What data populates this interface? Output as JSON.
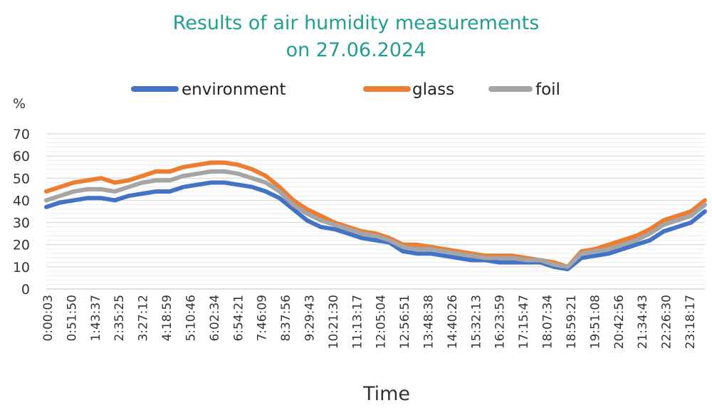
{
  "chart_data": {
    "type": "line",
    "title": [
      "Results of air humidity measurements",
      "on 27.06.2024"
    ],
    "xlabel": "Time",
    "ylabel": "%",
    "ylim": [
      0,
      70
    ],
    "yticks": [
      0,
      10,
      20,
      30,
      40,
      50,
      60,
      70
    ],
    "grid": true,
    "legend_position": "top",
    "x_tick_labels": [
      "0:00:03",
      "0:51:50",
      "1:43:37",
      "2:35:25",
      "3:27:12",
      "4:18:59",
      "5:10:46",
      "6:02:34",
      "6:54:21",
      "7:46:09",
      "8:37:56",
      "9:29:43",
      "10:21:30",
      "11:13:17",
      "12:05:04",
      "12:56:51",
      "13:48:38",
      "14:40:26",
      "15:32:13",
      "16:23:59",
      "17:15:47",
      "18:07:34",
      "18:59:21",
      "19:51:08",
      "20:42:56",
      "21:34:43",
      "22:26:30",
      "23:18:17"
    ],
    "x": [
      "0:00",
      "0:30",
      "1:00",
      "1:30",
      "2:00",
      "2:30",
      "3:00",
      "3:30",
      "4:00",
      "4:30",
      "5:00",
      "5:30",
      "6:00",
      "6:30",
      "7:00",
      "7:30",
      "8:00",
      "8:30",
      "9:00",
      "9:30",
      "10:00",
      "10:30",
      "11:00",
      "11:30",
      "12:00",
      "12:30",
      "13:00",
      "13:30",
      "14:00",
      "14:30",
      "15:00",
      "15:30",
      "16:00",
      "16:30",
      "17:00",
      "17:30",
      "18:00",
      "18:30",
      "19:00",
      "19:30",
      "20:00",
      "20:30",
      "21:00",
      "21:30",
      "22:00",
      "22:30",
      "23:00",
      "23:30",
      "24:00"
    ],
    "series": [
      {
        "name": "environment",
        "color": "#4472c4",
        "values": [
          37,
          39,
          40,
          41,
          41,
          40,
          42,
          43,
          44,
          44,
          46,
          47,
          48,
          48,
          47,
          46,
          44,
          41,
          36,
          31,
          28,
          27,
          25,
          23,
          22,
          21,
          17,
          16,
          16,
          15,
          14,
          13,
          13,
          12,
          12,
          12,
          12,
          10,
          9,
          14,
          15,
          16,
          18,
          20,
          22,
          26,
          28,
          30,
          35
        ]
      },
      {
        "name": "glass",
        "color": "#ed7d31",
        "values": [
          44,
          46,
          48,
          49,
          50,
          48,
          49,
          51,
          53,
          53,
          55,
          56,
          57,
          57,
          56,
          54,
          51,
          46,
          40,
          36,
          33,
          30,
          28,
          26,
          25,
          23,
          20,
          20,
          19,
          18,
          17,
          16,
          15,
          15,
          15,
          14,
          13,
          12,
          10,
          17,
          18,
          20,
          22,
          24,
          27,
          31,
          33,
          35,
          40
        ]
      },
      {
        "name": "foil",
        "color": "#a5a5a5",
        "values": [
          40,
          42,
          44,
          45,
          45,
          44,
          46,
          48,
          49,
          49,
          51,
          52,
          53,
          53,
          52,
          50,
          48,
          44,
          38,
          34,
          31,
          29,
          27,
          25,
          24,
          22,
          19,
          18,
          18,
          17,
          16,
          15,
          14,
          14,
          14,
          13,
          13,
          11,
          10,
          16,
          17,
          18,
          20,
          22,
          25,
          29,
          31,
          33,
          38
        ]
      }
    ]
  }
}
